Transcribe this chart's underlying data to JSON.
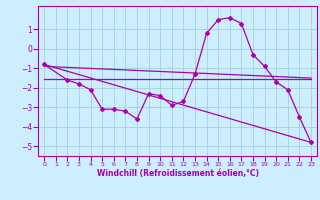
{
  "xlabel": "Windchill (Refroidissement éolien,°C)",
  "xlim": [
    -0.5,
    23.5
  ],
  "ylim": [
    -5.5,
    2.2
  ],
  "yticks": [
    1,
    0,
    -1,
    -2,
    -3,
    -4,
    -5
  ],
  "xticks": [
    0,
    1,
    2,
    3,
    4,
    5,
    6,
    7,
    8,
    9,
    10,
    11,
    12,
    13,
    14,
    15,
    16,
    17,
    18,
    19,
    20,
    21,
    22,
    23
  ],
  "bg_color": "#cceeff",
  "grid_color": "#99cccc",
  "line_color": "#aa00aa",
  "line1_x": [
    0,
    2,
    3,
    4,
    5,
    6,
    7,
    8,
    9,
    10,
    11,
    12,
    13,
    14,
    15,
    16,
    17,
    18,
    19,
    20,
    21,
    22,
    23
  ],
  "line1_y": [
    -0.8,
    -1.6,
    -1.8,
    -2.1,
    -3.1,
    -3.1,
    -3.2,
    -3.6,
    -2.3,
    -2.4,
    -2.9,
    -2.7,
    -1.3,
    0.8,
    1.5,
    1.6,
    1.3,
    -0.3,
    -0.9,
    -1.7,
    -2.1,
    -3.5,
    -4.8
  ],
  "line2_x": [
    0,
    23
  ],
  "line2_y": [
    -0.8,
    -4.8
  ],
  "line3_x": [
    0,
    23
  ],
  "line3_y": [
    -1.55,
    -1.55
  ],
  "line4_x": [
    0,
    23
  ],
  "line4_y": [
    -0.9,
    -1.5
  ]
}
